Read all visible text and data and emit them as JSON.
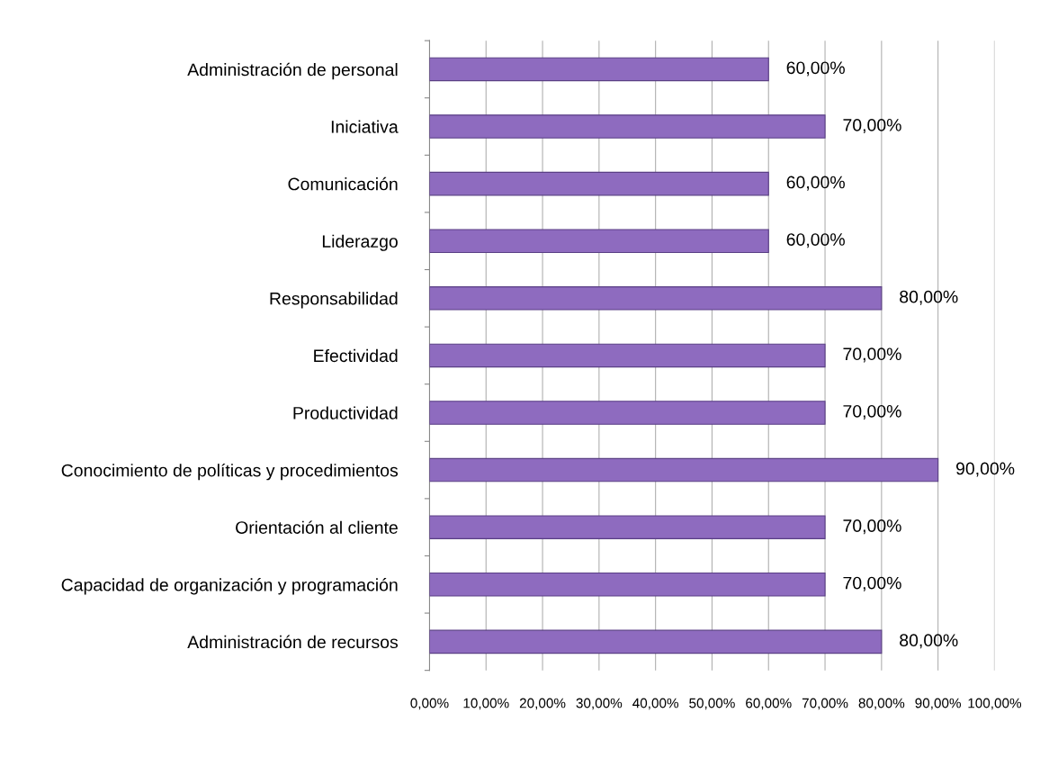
{
  "chart_data": {
    "type": "bar",
    "orientation": "horizontal",
    "categories": [
      "Administración de personal",
      "Iniciativa",
      "Comunicación",
      "Liderazgo",
      "Responsabilidad",
      "Efectividad",
      "Productividad",
      "Conocimiento de políticas y procedimientos",
      "Orientación al cliente",
      "Capacidad de organización y programación",
      "Administración de recursos"
    ],
    "values": [
      60,
      70,
      60,
      60,
      80,
      70,
      70,
      90,
      70,
      70,
      80
    ],
    "value_labels": [
      "60,00%",
      "70,00%",
      "60,00%",
      "60,00%",
      "80,00%",
      "70,00%",
      "70,00%",
      "90,00%",
      "70,00%",
      "70,00%",
      "80,00%"
    ],
    "color": "#8e6bbf",
    "xlim": [
      0,
      100
    ],
    "xticks": [
      {
        "value": 0,
        "label": "0,00%"
      },
      {
        "value": 10,
        "label": "10,00%"
      },
      {
        "value": 20,
        "label": "20,00%"
      },
      {
        "value": 30,
        "label": "30,00%"
      },
      {
        "value": 40,
        "label": "40,00%"
      },
      {
        "value": 50,
        "label": "50,00%"
      },
      {
        "value": 60,
        "label": "60,00%"
      },
      {
        "value": 70,
        "label": "70,00%"
      },
      {
        "value": 80,
        "label": "80,00%"
      },
      {
        "value": 90,
        "label": "90,00%"
      },
      {
        "value": 100,
        "label": "100,00%"
      }
    ],
    "grid": "x",
    "legend": false
  }
}
